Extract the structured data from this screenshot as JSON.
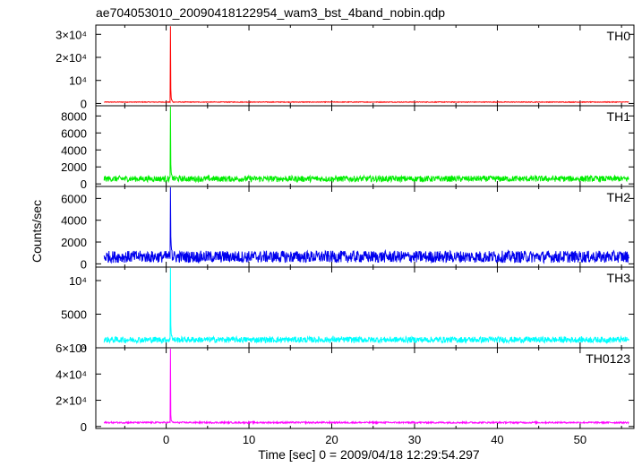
{
  "chart_data": {
    "type": "line",
    "title": "ae704053010_20090418122954_wam3_bst_4band_nobin.qdp",
    "xlabel": "Time [sec] 0 = 2009/04/18 12:29:54.297",
    "ylabel": "Counts/sec",
    "xlim": [
      -8.5,
      56.5
    ],
    "x_ticks": [
      0,
      10,
      20,
      30,
      40,
      50
    ],
    "x_tick_labels": [
      "0",
      "10",
      "20",
      "30",
      "40",
      "50"
    ],
    "data_range": [
      -7.5,
      55.9
    ],
    "peak_time": 0.5,
    "grid": false,
    "panels": [
      {
        "name": "TH0",
        "color": "#ff0000",
        "ylim": [
          -1000,
          34000
        ],
        "y_ticks": [
          0,
          10000,
          20000,
          30000
        ],
        "y_tick_labels": [
          "0",
          "10⁴",
          "2×10⁴",
          "3×10⁴"
        ],
        "baseline": 600,
        "noise": 300,
        "peak": 33500,
        "decay": [
          6000,
          2500,
          1500,
          1000,
          800
        ]
      },
      {
        "name": "TH1",
        "color": "#00ee00",
        "ylim": [
          -300,
          9200
        ],
        "y_ticks": [
          0,
          2000,
          4000,
          6000,
          8000
        ],
        "y_tick_labels": [
          "0",
          "2000",
          "4000",
          "6000",
          "8000"
        ],
        "baseline": 600,
        "noise": 700,
        "peak": 9200,
        "decay": [
          2200,
          1400,
          1000,
          800
        ]
      },
      {
        "name": "TH2",
        "color": "#0000ee",
        "ylim": [
          -300,
          7100
        ],
        "y_ticks": [
          0,
          2000,
          4000,
          6000
        ],
        "y_tick_labels": [
          "0",
          "2000",
          "4000",
          "6000"
        ],
        "baseline": 650,
        "noise": 1100,
        "peak": 7100,
        "decay": [
          2500,
          1700,
          1400
        ]
      },
      {
        "name": "TH3",
        "color": "#00ffff",
        "ylim": [
          0,
          12000
        ],
        "y_ticks": [
          0,
          5000,
          10000
        ],
        "y_tick_labels": [
          "0",
          "5000",
          "10⁴"
        ],
        "baseline": 1200,
        "noise": 900,
        "peak": 12000,
        "decay": [
          3500,
          2200,
          1800
        ]
      },
      {
        "name": "TH0123",
        "color": "#ff00ff",
        "ylim": [
          -1500,
          60000
        ],
        "y_ticks": [
          0,
          20000,
          40000,
          60000
        ],
        "y_tick_labels": [
          "0",
          "2×10⁴",
          "4×10⁴",
          "6×10⁴"
        ],
        "baseline": 3000,
        "noise": 1200,
        "peak": 60000,
        "decay": [
          9000,
          5000,
          4000,
          3500
        ]
      }
    ]
  }
}
